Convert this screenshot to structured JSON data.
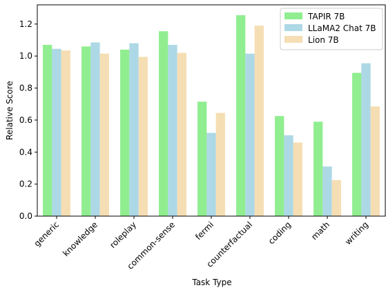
{
  "chart_data": {
    "type": "bar",
    "title": "",
    "xlabel": "Task Type",
    "ylabel": "Relative Score",
    "ylim": [
      0,
      1.32
    ],
    "yticks": [
      "0.0",
      "0.2",
      "0.4",
      "0.6",
      "0.8",
      "1.0",
      "1.2"
    ],
    "grid": false,
    "legend_position": "top-right",
    "categories": [
      "generic",
      "knowledge",
      "roleplay",
      "common-sense",
      "fermi",
      "counterfactual",
      "coding",
      "math",
      "writing"
    ],
    "series": [
      {
        "name": "TAPIR 7B",
        "color": "#90ee90",
        "values": [
          1.07,
          1.06,
          1.04,
          1.155,
          0.715,
          1.255,
          0.625,
          0.59,
          0.895
        ]
      },
      {
        "name": "LLaMA2 Chat 7B",
        "color": "#add8e6",
        "values": [
          1.045,
          1.085,
          1.08,
          1.07,
          0.52,
          1.015,
          0.505,
          0.31,
          0.955
        ]
      },
      {
        "name": "Lion 7B",
        "color": "#f5deb3",
        "values": [
          1.035,
          1.015,
          0.995,
          1.02,
          0.645,
          1.19,
          0.46,
          0.225,
          0.685
        ]
      }
    ]
  }
}
